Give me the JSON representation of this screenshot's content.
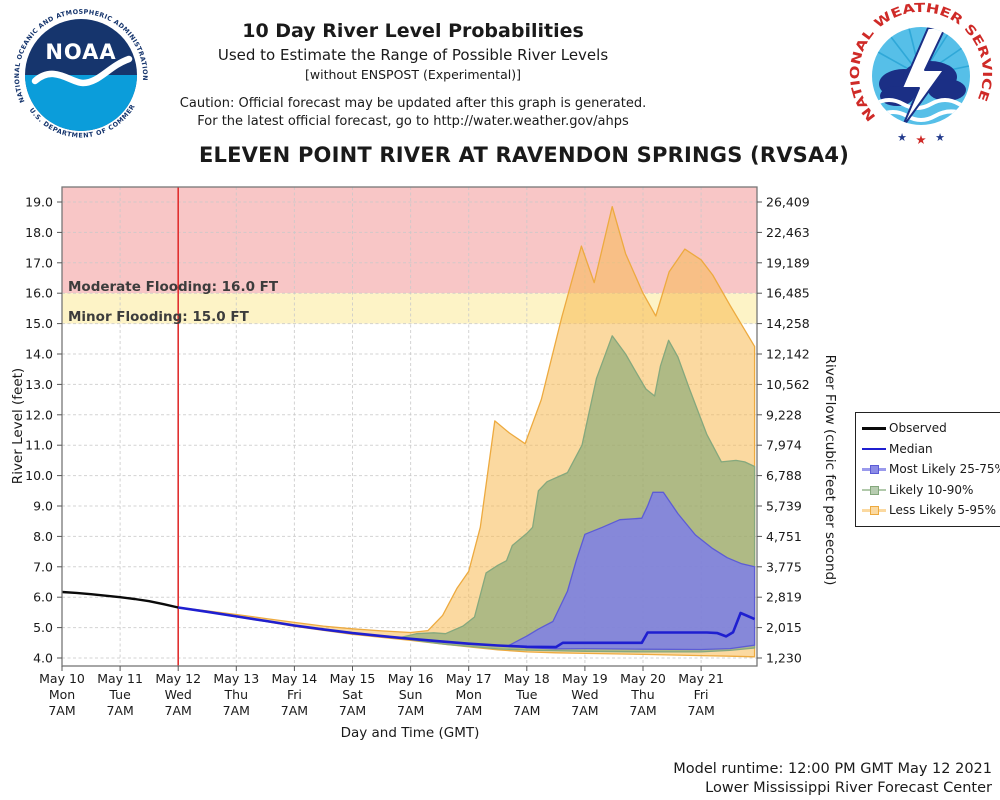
{
  "header": {
    "title": "10 Day River Level Probabilities",
    "subtitle1": "Used to Estimate the Range of Possible River Levels",
    "subtitle2": "[without ENSPOST (Experimental)]",
    "caution1": "Caution: Official forecast may be updated after this graph is generated.",
    "caution2": "For the latest official forecast, go to http://water.weather.gov/ahps",
    "station_title": "ELEVEN POINT RIVER AT RAVENDON SPRINGS (RVSA4)"
  },
  "logos": {
    "noaa": {
      "acronym": "NOAA",
      "arc_top": "NATIONAL OCEANIC AND ATMOSPHERIC ADMINISTRATION",
      "arc_bottom": "U.S. DEPARTMENT OF COMMERCE"
    },
    "nws": {
      "arc": "NATIONAL WEATHER SERVICE",
      "star": "★"
    }
  },
  "footer": {
    "line1": "Model runtime: 12:00 PM GMT May 12 2021",
    "line2": "Lower Mississippi River Forecast Center"
  },
  "legend": {
    "items": [
      {
        "label": "Observed",
        "type": "line",
        "color": "#0a0a0a"
      },
      {
        "label": "Median",
        "type": "line",
        "color": "#1f1fd0"
      },
      {
        "label": "Most Likely 25-75%",
        "type": "band",
        "color": "#9a9aec",
        "fill": "#8b8be7",
        "edge": "#5c5cd6"
      },
      {
        "label": "Likely 10-90%",
        "type": "band",
        "color": "#b1c9ab",
        "fill": "#b7ccb0",
        "edge": "#85a87d"
      },
      {
        "label": "Less Likely 5-95%",
        "type": "band",
        "color": "#fbd9a0",
        "fill": "#fbd9a0",
        "edge": "#edaa3f"
      }
    ]
  },
  "chart_data": {
    "type": "area",
    "title": "ELEVEN POINT RIVER AT RAVENDON SPRINGS (RVSA4)",
    "xlabel": "Day and Time (GMT)",
    "ylabel_left": "River Level (feet)",
    "ylabel_right": "River Flow (cubic feet per second)",
    "grid": true,
    "legend_position": "right",
    "ylim": [
      3.73,
      19.5
    ],
    "xlim_days": [
      0,
      11.92
    ],
    "forecast_start_day": 2,
    "x_ticks": [
      {
        "date": "May 10",
        "dow": "Mon",
        "time": "7AM"
      },
      {
        "date": "May 11",
        "dow": "Tue",
        "time": "7AM"
      },
      {
        "date": "May 12",
        "dow": "Wed",
        "time": "7AM"
      },
      {
        "date": "May 13",
        "dow": "Thu",
        "time": "7AM"
      },
      {
        "date": "May 14",
        "dow": "Fri",
        "time": "7AM"
      },
      {
        "date": "May 15",
        "dow": "Sat",
        "time": "7AM"
      },
      {
        "date": "May 16",
        "dow": "Sun",
        "time": "7AM"
      },
      {
        "date": "May 17",
        "dow": "Mon",
        "time": "7AM"
      },
      {
        "date": "May 18",
        "dow": "Tue",
        "time": "7AM"
      },
      {
        "date": "May 19",
        "dow": "Wed",
        "time": "7AM"
      },
      {
        "date": "May 20",
        "dow": "Thu",
        "time": "7AM"
      },
      {
        "date": "May 21",
        "dow": "Fri",
        "time": "7AM"
      }
    ],
    "y_ticks_left": [
      "19.0",
      "18.0",
      "17.0",
      "16.0",
      "15.0",
      "14.0",
      "13.0",
      "12.0",
      "11.0",
      "10.0",
      "9.0",
      "8.0",
      "7.0",
      "6.0",
      "5.0",
      "4.0"
    ],
    "y_ticks_right": [
      "26,409",
      "22,463",
      "19,189",
      "16,485",
      "14,258",
      "12,142",
      "10,562",
      "9,228",
      "7,974",
      "6,788",
      "5,739",
      "4,751",
      "3,775",
      "2,819",
      "2,015",
      "1,230"
    ],
    "flood": {
      "moderate": {
        "level": 16.0,
        "label": "Moderate Flooding: 16.0 FT",
        "color": "#f8c6c6"
      },
      "minor": {
        "level": 15.0,
        "label": "Minor Flooding: 15.0 FT",
        "color": "#fdf3c6"
      }
    },
    "colors": {
      "observed": "#0a0a0a",
      "median": "#1f1fd0",
      "band_5_95_fill": "rgba(247,186,82,0.55)",
      "band_5_95_edge": "#edaa3f",
      "band_10_90_fill": "rgba(125,165,115,0.6)",
      "band_10_90_edge": "#85a87d",
      "band_25_75_fill": "rgba(125,125,235,0.82)",
      "band_25_75_edge": "#5c5cd6",
      "forecast_line": "#e03030",
      "grid": "#c9c9c9",
      "frame": "#777777"
    },
    "series": {
      "observed": {
        "name": "Observed",
        "points": [
          [
            0,
            6.17
          ],
          [
            0.25,
            6.14
          ],
          [
            0.5,
            6.1
          ],
          [
            0.75,
            6.05
          ],
          [
            1,
            6.0
          ],
          [
            1.25,
            5.94
          ],
          [
            1.5,
            5.87
          ],
          [
            1.75,
            5.77
          ],
          [
            2,
            5.66
          ]
        ]
      },
      "median": {
        "name": "Median",
        "points": [
          [
            2,
            5.66
          ],
          [
            2.5,
            5.52
          ],
          [
            3,
            5.37
          ],
          [
            3.5,
            5.22
          ],
          [
            4,
            5.07
          ],
          [
            4.5,
            4.94
          ],
          [
            5,
            4.82
          ],
          [
            5.5,
            4.72
          ],
          [
            6,
            4.63
          ],
          [
            6.5,
            4.55
          ],
          [
            7,
            4.47
          ],
          [
            7.5,
            4.41
          ],
          [
            8,
            4.37
          ],
          [
            8.5,
            4.36
          ],
          [
            8.62,
            4.5
          ],
          [
            9,
            4.5
          ],
          [
            9.5,
            4.5
          ],
          [
            9.98,
            4.5
          ],
          [
            10.08,
            4.84
          ],
          [
            10.6,
            4.84
          ],
          [
            11.1,
            4.84
          ],
          [
            11.28,
            4.82
          ],
          [
            11.43,
            4.71
          ],
          [
            11.55,
            4.85
          ],
          [
            11.68,
            5.48
          ],
          [
            11.8,
            5.38
          ],
          [
            11.92,
            5.28
          ]
        ]
      },
      "band_5_95": {
        "name": "Less Likely 5-95%",
        "upper": [
          [
            2,
            5.66
          ],
          [
            2.5,
            5.55
          ],
          [
            3,
            5.43
          ],
          [
            3.5,
            5.3
          ],
          [
            4,
            5.17
          ],
          [
            4.5,
            5.05
          ],
          [
            5,
            4.96
          ],
          [
            5.5,
            4.89
          ],
          [
            6,
            4.84
          ],
          [
            6.3,
            4.9
          ],
          [
            6.55,
            5.4
          ],
          [
            6.8,
            6.3
          ],
          [
            7.0,
            6.85
          ],
          [
            7.2,
            8.3
          ],
          [
            7.45,
            11.8
          ],
          [
            7.7,
            11.4
          ],
          [
            7.97,
            11.05
          ],
          [
            8.25,
            12.5
          ],
          [
            8.6,
            15.2
          ],
          [
            8.94,
            17.55
          ],
          [
            9.16,
            16.35
          ],
          [
            9.47,
            18.85
          ],
          [
            9.7,
            17.3
          ],
          [
            10.0,
            16.0
          ],
          [
            10.22,
            15.25
          ],
          [
            10.45,
            16.7
          ],
          [
            10.72,
            17.45
          ],
          [
            11.0,
            17.1
          ],
          [
            11.2,
            16.6
          ],
          [
            11.5,
            15.6
          ],
          [
            11.92,
            14.25
          ]
        ],
        "lower": [
          [
            2,
            5.66
          ],
          [
            2.5,
            5.51
          ],
          [
            3,
            5.36
          ],
          [
            3.5,
            5.2
          ],
          [
            4,
            5.04
          ],
          [
            4.5,
            4.91
          ],
          [
            5,
            4.78
          ],
          [
            5.5,
            4.68
          ],
          [
            6,
            4.58
          ],
          [
            6.5,
            4.47
          ],
          [
            7,
            4.37
          ],
          [
            7.5,
            4.27
          ],
          [
            8,
            4.2
          ],
          [
            8.5,
            4.17
          ],
          [
            9,
            4.15
          ],
          [
            10,
            4.12
          ],
          [
            11,
            4.08
          ],
          [
            11.5,
            4.06
          ],
          [
            11.92,
            4.04
          ]
        ]
      },
      "band_10_90": {
        "name": "Likely 10-90%",
        "upper": [
          [
            5.8,
            4.66
          ],
          [
            6.1,
            4.8
          ],
          [
            6.4,
            4.83
          ],
          [
            6.6,
            4.8
          ],
          [
            6.9,
            5.05
          ],
          [
            7.1,
            5.35
          ],
          [
            7.3,
            6.8
          ],
          [
            7.5,
            7.05
          ],
          [
            7.65,
            7.2
          ],
          [
            7.75,
            7.7
          ],
          [
            8.0,
            8.1
          ],
          [
            8.1,
            8.3
          ],
          [
            8.2,
            9.5
          ],
          [
            8.35,
            9.8
          ],
          [
            8.7,
            10.1
          ],
          [
            8.95,
            11.0
          ],
          [
            9.2,
            13.2
          ],
          [
            9.47,
            14.6
          ],
          [
            9.7,
            14.0
          ],
          [
            9.85,
            13.5
          ],
          [
            10.05,
            12.85
          ],
          [
            10.2,
            12.62
          ],
          [
            10.3,
            13.6
          ],
          [
            10.44,
            14.45
          ],
          [
            10.6,
            13.9
          ],
          [
            10.8,
            12.85
          ],
          [
            11.1,
            11.35
          ],
          [
            11.35,
            10.45
          ],
          [
            11.6,
            10.5
          ],
          [
            11.75,
            10.45
          ],
          [
            11.92,
            10.3
          ]
        ],
        "lower": [
          [
            5.8,
            4.66
          ],
          [
            6.2,
            4.55
          ],
          [
            6.6,
            4.45
          ],
          [
            7,
            4.38
          ],
          [
            7.5,
            4.3
          ],
          [
            8,
            4.26
          ],
          [
            9,
            4.22
          ],
          [
            10,
            4.2
          ],
          [
            11,
            4.2
          ],
          [
            11.5,
            4.25
          ],
          [
            11.92,
            4.33
          ]
        ]
      },
      "band_25_75": {
        "name": "Most Likely 25-75%",
        "upper": [
          [
            7.7,
            4.42
          ],
          [
            8.0,
            4.72
          ],
          [
            8.2,
            4.95
          ],
          [
            8.45,
            5.2
          ],
          [
            8.7,
            6.2
          ],
          [
            8.85,
            7.2
          ],
          [
            9.0,
            8.07
          ],
          [
            9.3,
            8.3
          ],
          [
            9.6,
            8.55
          ],
          [
            9.98,
            8.6
          ],
          [
            10.08,
            9.0
          ],
          [
            10.17,
            9.45
          ],
          [
            10.35,
            9.45
          ],
          [
            10.6,
            8.75
          ],
          [
            10.9,
            8.05
          ],
          [
            11.2,
            7.6
          ],
          [
            11.45,
            7.3
          ],
          [
            11.7,
            7.1
          ],
          [
            11.92,
            7.0
          ]
        ],
        "lower": [
          [
            7.7,
            4.42
          ],
          [
            8.0,
            4.34
          ],
          [
            8.5,
            4.3
          ],
          [
            9,
            4.31
          ],
          [
            10,
            4.29
          ],
          [
            11,
            4.28
          ],
          [
            11.5,
            4.31
          ],
          [
            11.92,
            4.42
          ]
        ]
      }
    }
  }
}
